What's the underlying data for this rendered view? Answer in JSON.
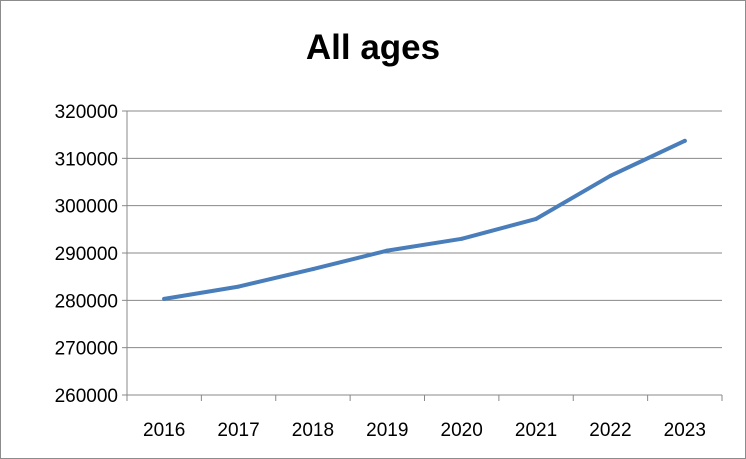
{
  "chart_data": {
    "type": "line",
    "title": "All ages",
    "xlabel": "",
    "ylabel": "",
    "x": [
      "2016",
      "2017",
      "2018",
      "2019",
      "2020",
      "2021",
      "2022",
      "2023"
    ],
    "series": [
      {
        "values": [
          280300,
          282900,
          286600,
          290500,
          293000,
          297200,
          306300,
          313700
        ]
      }
    ],
    "ylim": [
      260000,
      320000
    ],
    "yticks": [
      "260000",
      "270000",
      "280000",
      "290000",
      "300000",
      "310000",
      "320000"
    ],
    "grid": true,
    "legend": "none",
    "line_color": "#4a7ebb",
    "grid_color": "#888888"
  }
}
